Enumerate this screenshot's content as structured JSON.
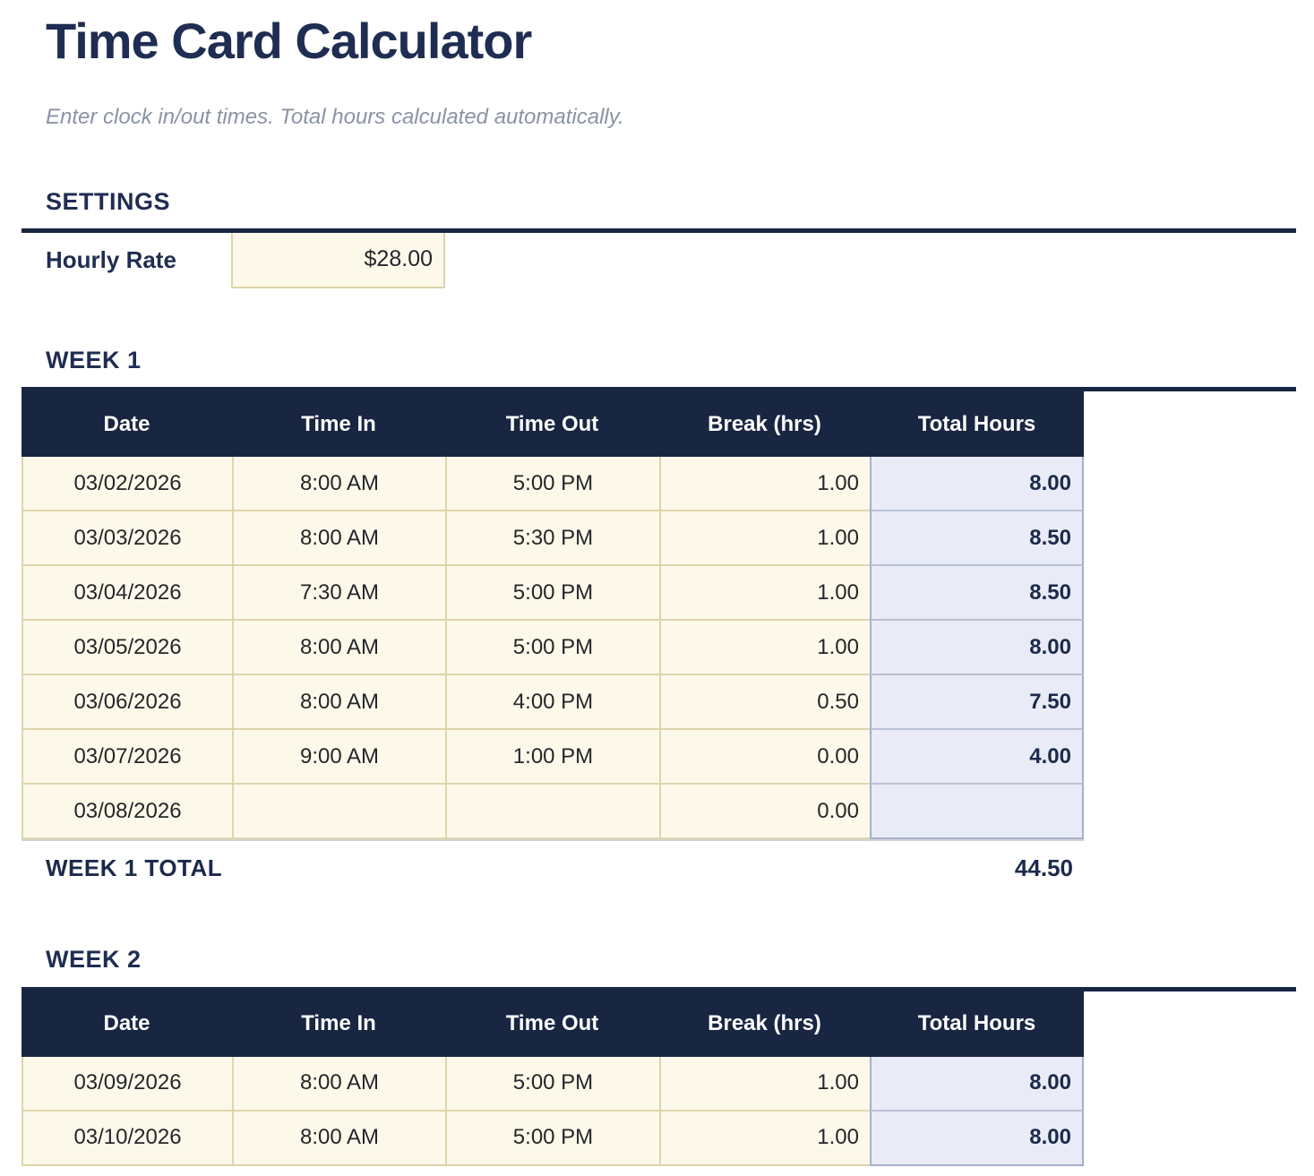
{
  "page": {
    "title": "Time Card Calculator",
    "subtitle": "Enter clock in/out times. Total hours calculated automatically."
  },
  "settings": {
    "heading": "SETTINGS",
    "hourly_rate_label": "Hourly Rate",
    "hourly_rate_value": "$28.00"
  },
  "table_headers": [
    "Date",
    "Time In",
    "Time Out",
    "Break (hrs)",
    "Total Hours"
  ],
  "week1": {
    "heading": "WEEK 1",
    "rows": [
      {
        "date": "03/02/2026",
        "time_in": "8:00 AM",
        "time_out": "5:00 PM",
        "break_hrs": "1.00",
        "total": "8.00"
      },
      {
        "date": "03/03/2026",
        "time_in": "8:00 AM",
        "time_out": "5:30 PM",
        "break_hrs": "1.00",
        "total": "8.50"
      },
      {
        "date": "03/04/2026",
        "time_in": "7:30 AM",
        "time_out": "5:00 PM",
        "break_hrs": "1.00",
        "total": "8.50"
      },
      {
        "date": "03/05/2026",
        "time_in": "8:00 AM",
        "time_out": "5:00 PM",
        "break_hrs": "1.00",
        "total": "8.00"
      },
      {
        "date": "03/06/2026",
        "time_in": "8:00 AM",
        "time_out": "4:00 PM",
        "break_hrs": "0.50",
        "total": "7.50"
      },
      {
        "date": "03/07/2026",
        "time_in": "9:00 AM",
        "time_out": "1:00 PM",
        "break_hrs": "0.00",
        "total": "4.00"
      },
      {
        "date": "03/08/2026",
        "time_in": "",
        "time_out": "",
        "break_hrs": "0.00",
        "total": ""
      }
    ],
    "total_label": "WEEK 1 TOTAL",
    "total_value": "44.50"
  },
  "week2": {
    "heading": "WEEK 2",
    "rows": [
      {
        "date": "03/09/2026",
        "time_in": "8:00 AM",
        "time_out": "5:00 PM",
        "break_hrs": "1.00",
        "total": "8.00"
      },
      {
        "date": "03/10/2026",
        "time_in": "8:00 AM",
        "time_out": "5:00 PM",
        "break_hrs": "1.00",
        "total": "8.00"
      }
    ]
  },
  "colors": {
    "navy": "#192642",
    "heading_text": "#1f2d52",
    "subtitle_text": "#8b93a4",
    "input_bg": "#fdf9ea",
    "input_border": "#ded5ac",
    "calculated_bg": "#e9ecf6",
    "calculated_border": "#a6b0c9"
  }
}
